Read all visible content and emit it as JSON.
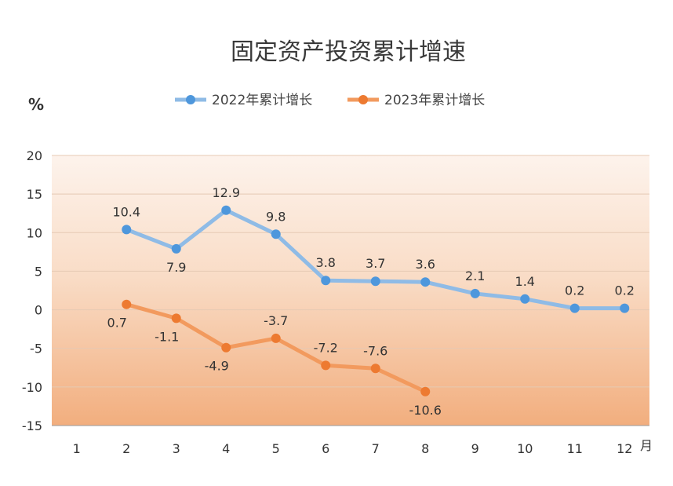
{
  "chart_data": {
    "type": "line",
    "title": "固定资产投资累计增速",
    "y_unit": "%",
    "x_unit": "月",
    "categories": [
      "1",
      "2",
      "3",
      "4",
      "5",
      "6",
      "7",
      "8",
      "9",
      "10",
      "11",
      "12"
    ],
    "ylim": [
      -15,
      20
    ],
    "yticks": [
      20,
      15,
      10,
      5,
      0,
      -5,
      -10,
      -15
    ],
    "grid": true,
    "legend_position": "top-center",
    "series": [
      {
        "name": "2022年累计增长",
        "color": "#8fbbe6",
        "marker_color": "#4e97dc",
        "values": [
          null,
          10.4,
          7.9,
          12.9,
          9.8,
          3.8,
          3.7,
          3.6,
          2.1,
          1.4,
          0.2,
          0.2
        ],
        "labels": [
          "",
          "10.4",
          "7.9",
          "12.9",
          "9.8",
          "3.8",
          "3.7",
          "3.6",
          "2.1",
          "1.4",
          "0.2",
          "0.2"
        ]
      },
      {
        "name": "2023年累计增长",
        "color": "#f29a5e",
        "marker_color": "#ed7a31",
        "values": [
          null,
          0.7,
          -1.1,
          -4.9,
          -3.7,
          -7.2,
          -7.6,
          -10.6,
          null,
          null,
          null,
          null
        ],
        "labels": [
          "",
          "0.7",
          "-1.1",
          "-4.9",
          "-3.7",
          "-7.2",
          "-7.6",
          "-10.6",
          "",
          "",
          "",
          ""
        ]
      }
    ]
  }
}
